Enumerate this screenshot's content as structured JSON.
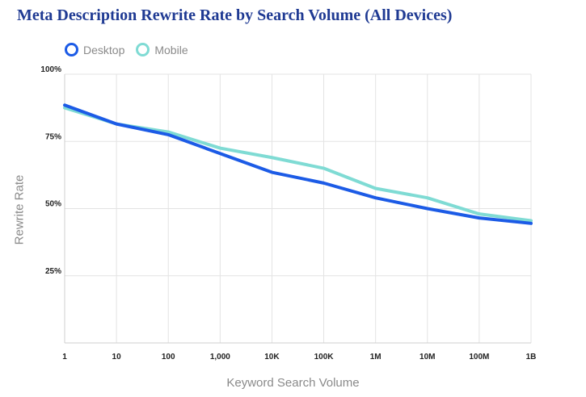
{
  "chart_data": {
    "type": "line",
    "title": "Meta Description Rewrite Rate by Search Volume (All Devices)",
    "xlabel": "Keyword Search Volume",
    "ylabel": "Rewrite Rate",
    "categories": [
      "1",
      "10",
      "100",
      "1,000",
      "10K",
      "100K",
      "1M",
      "10M",
      "100M",
      "1B"
    ],
    "y_ticks": [
      {
        "value": 100,
        "label": "100%"
      },
      {
        "value": 75,
        "label": "75%"
      },
      {
        "value": 50,
        "label": "50%"
      },
      {
        "value": 25,
        "label": "25%"
      }
    ],
    "ylim": [
      0,
      100
    ],
    "grid": true,
    "legend_position": "top-left",
    "series": [
      {
        "name": "Desktop",
        "color": "#1c5be6",
        "values": [
          88.5,
          81.5,
          77.5,
          70.5,
          63.5,
          59.5,
          54.0,
          50.0,
          46.5,
          44.5
        ]
      },
      {
        "name": "Mobile",
        "color": "#7fdbd4",
        "values": [
          87.5,
          81.5,
          78.5,
          72.5,
          69.0,
          65.0,
          57.5,
          54.0,
          48.0,
          45.5
        ]
      }
    ]
  }
}
